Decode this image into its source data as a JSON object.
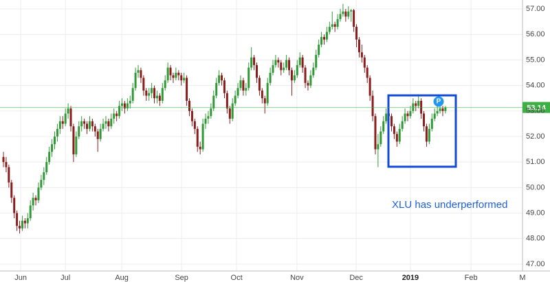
{
  "chart_data": {
    "type": "candlestick",
    "up_color": "#2f9a35",
    "down_color": "#8b1c1c",
    "xlim": [
      -1.28,
      192.6
    ],
    "xticks": [
      {
        "value": 6.4,
        "label": "Jun"
      },
      {
        "value": 23.0,
        "label": "Jul"
      },
      {
        "value": 43.9,
        "label": "Aug"
      },
      {
        "value": 66.1,
        "label": "Sep"
      },
      {
        "value": 86.5,
        "label": "Oct"
      },
      {
        "value": 108.9,
        "label": "Nov"
      },
      {
        "value": 130.9,
        "label": "Dec"
      },
      {
        "value": 151.0,
        "label": "2019"
      },
      {
        "value": 173.5,
        "label": "Feb"
      },
      {
        "value": 192.6,
        "label": "M"
      }
    ],
    "ylim": [
      46.73,
      57.35
    ],
    "yticks": [
      {
        "value": 47,
        "label": "47.00"
      },
      {
        "value": 48,
        "label": "48.00"
      },
      {
        "value": 49,
        "label": "49.00"
      },
      {
        "value": 50,
        "label": "50.00"
      },
      {
        "value": 51,
        "label": "51.00"
      },
      {
        "value": 52,
        "label": "52.00"
      },
      {
        "value": 53,
        "label": "53.00"
      },
      {
        "value": 54,
        "label": "54.00"
      },
      {
        "value": 55,
        "label": "55.00"
      },
      {
        "value": 56,
        "label": "56.00"
      },
      {
        "value": 57,
        "label": "57.00"
      }
    ],
    "grid": true,
    "last_price": 53.14,
    "last_price_color": "#3cb043",
    "marker_label": "P",
    "annotation": "XLU has underperformed",
    "candles": [
      [
        51.2,
        51.4,
        50.8,
        51.0
      ],
      [
        51.0,
        51.2,
        50.6,
        50.8
      ],
      [
        50.8,
        50.9,
        50.0,
        50.2
      ],
      [
        50.2,
        50.3,
        49.4,
        49.6
      ],
      [
        49.6,
        49.7,
        48.8,
        49.0
      ],
      [
        49.0,
        49.1,
        48.3,
        48.5
      ],
      [
        48.5,
        48.7,
        48.2,
        48.4
      ],
      [
        48.4,
        48.9,
        48.3,
        48.7
      ],
      [
        48.7,
        48.8,
        48.4,
        48.6
      ],
      [
        48.6,
        49.0,
        48.4,
        48.8
      ],
      [
        48.8,
        49.5,
        48.7,
        49.3
      ],
      [
        49.3,
        49.8,
        49.1,
        49.6
      ],
      [
        49.6,
        49.7,
        49.3,
        49.5
      ],
      [
        49.5,
        50.2,
        49.4,
        50.0
      ],
      [
        50.0,
        50.5,
        49.9,
        50.3
      ],
      [
        50.3,
        50.8,
        50.1,
        50.6
      ],
      [
        50.6,
        51.2,
        50.5,
        51.0
      ],
      [
        51.0,
        51.6,
        50.9,
        51.4
      ],
      [
        51.4,
        51.9,
        51.2,
        51.7
      ],
      [
        51.7,
        52.2,
        51.5,
        52.0
      ],
      [
        52.0,
        52.5,
        51.8,
        52.3
      ],
      [
        52.3,
        52.8,
        52.1,
        52.6
      ],
      [
        52.6,
        52.8,
        52.3,
        52.5
      ],
      [
        52.5,
        53.1,
        52.4,
        52.9
      ],
      [
        52.9,
        53.3,
        52.7,
        53.1
      ],
      [
        53.1,
        53.2,
        52.2,
        52.4
      ],
      [
        52.4,
        52.5,
        51.0,
        51.3
      ],
      [
        51.3,
        52.2,
        51.2,
        52.0
      ],
      [
        52.0,
        52.6,
        51.9,
        52.4
      ],
      [
        52.4,
        52.8,
        52.2,
        52.6
      ],
      [
        52.6,
        52.7,
        52.3,
        52.5
      ],
      [
        52.5,
        52.6,
        52.1,
        52.3
      ],
      [
        52.3,
        52.8,
        52.2,
        52.6
      ],
      [
        52.6,
        52.7,
        52.2,
        52.4
      ],
      [
        52.4,
        52.5,
        52.0,
        52.2
      ],
      [
        52.2,
        52.3,
        51.4,
        51.9
      ],
      [
        51.9,
        52.5,
        51.8,
        52.3
      ],
      [
        52.3,
        52.7,
        52.2,
        52.5
      ],
      [
        52.5,
        52.8,
        52.3,
        52.6
      ],
      [
        52.6,
        52.7,
        52.2,
        52.4
      ],
      [
        52.4,
        52.9,
        52.3,
        52.7
      ],
      [
        52.7,
        53.1,
        52.5,
        52.9
      ],
      [
        52.9,
        53.0,
        52.6,
        52.8
      ],
      [
        52.8,
        53.4,
        52.7,
        53.2
      ],
      [
        53.2,
        53.5,
        53.0,
        53.3
      ],
      [
        53.3,
        53.4,
        52.9,
        53.1
      ],
      [
        53.1,
        53.5,
        53.0,
        53.3
      ],
      [
        53.3,
        53.6,
        53.1,
        53.4
      ],
      [
        53.4,
        54.1,
        53.3,
        53.9
      ],
      [
        53.9,
        54.7,
        53.8,
        54.5
      ],
      [
        54.5,
        54.8,
        54.3,
        54.6
      ],
      [
        54.6,
        54.7,
        54.1,
        54.3
      ],
      [
        54.3,
        54.4,
        53.6,
        53.8
      ],
      [
        53.8,
        53.9,
        53.4,
        53.6
      ],
      [
        53.6,
        53.9,
        53.4,
        53.7
      ],
      [
        53.7,
        54.1,
        53.5,
        53.9
      ],
      [
        53.9,
        54.0,
        53.3,
        53.5
      ],
      [
        53.5,
        53.8,
        53.3,
        53.6
      ],
      [
        53.6,
        53.7,
        53.2,
        53.4
      ],
      [
        53.4,
        54.1,
        53.3,
        53.9
      ],
      [
        53.9,
        54.4,
        53.8,
        54.2
      ],
      [
        54.2,
        54.9,
        54.1,
        54.7
      ],
      [
        54.7,
        54.8,
        54.2,
        54.4
      ],
      [
        54.4,
        54.5,
        54.1,
        54.3
      ],
      [
        54.3,
        54.7,
        54.2,
        54.5
      ],
      [
        54.5,
        54.6,
        54.2,
        54.4
      ],
      [
        54.4,
        54.5,
        54.0,
        54.2
      ],
      [
        54.2,
        54.5,
        54.1,
        54.3
      ],
      [
        54.3,
        54.4,
        53.2,
        53.4
      ],
      [
        53.4,
        53.5,
        52.8,
        53.0
      ],
      [
        53.0,
        53.1,
        52.4,
        52.6
      ],
      [
        52.6,
        52.7,
        52.1,
        52.3
      ],
      [
        52.3,
        52.4,
        51.4,
        51.6
      ],
      [
        51.6,
        51.8,
        51.3,
        51.5
      ],
      [
        51.5,
        52.7,
        51.4,
        52.5
      ],
      [
        52.5,
        52.9,
        52.3,
        52.7
      ],
      [
        52.7,
        53.0,
        52.5,
        52.8
      ],
      [
        52.8,
        53.3,
        52.7,
        53.1
      ],
      [
        53.1,
        53.8,
        53.0,
        53.6
      ],
      [
        53.6,
        54.3,
        53.5,
        54.1
      ],
      [
        54.1,
        54.6,
        54.0,
        54.4
      ],
      [
        54.4,
        54.5,
        54.0,
        54.2
      ],
      [
        54.2,
        54.3,
        53.5,
        53.7
      ],
      [
        53.7,
        53.8,
        52.9,
        53.1
      ],
      [
        53.1,
        53.2,
        52.5,
        52.7
      ],
      [
        52.7,
        53.5,
        52.6,
        53.3
      ],
      [
        53.3,
        53.8,
        53.2,
        53.6
      ],
      [
        53.6,
        54.1,
        53.5,
        53.9
      ],
      [
        53.9,
        54.4,
        53.8,
        54.2
      ],
      [
        54.2,
        54.3,
        53.6,
        53.8
      ],
      [
        53.8,
        54.1,
        53.6,
        53.9
      ],
      [
        53.9,
        54.9,
        53.8,
        54.7
      ],
      [
        54.7,
        55.5,
        54.6,
        55.1
      ],
      [
        55.1,
        55.2,
        54.6,
        54.8
      ],
      [
        54.8,
        54.9,
        54.1,
        54.3
      ],
      [
        54.3,
        54.4,
        53.6,
        53.8
      ],
      [
        53.8,
        53.9,
        53.3,
        53.5
      ],
      [
        53.5,
        53.6,
        52.9,
        53.3
      ],
      [
        53.3,
        54.3,
        53.2,
        54.1
      ],
      [
        54.1,
        54.7,
        54.0,
        54.5
      ],
      [
        54.5,
        55.0,
        54.4,
        54.8
      ],
      [
        54.8,
        55.2,
        54.7,
        55.0
      ],
      [
        55.0,
        55.1,
        54.7,
        54.9
      ],
      [
        54.9,
        55.0,
        54.4,
        54.6
      ],
      [
        54.6,
        54.9,
        54.5,
        54.7
      ],
      [
        54.7,
        55.2,
        54.6,
        55.0
      ],
      [
        55.0,
        55.1,
        54.4,
        54.6
      ],
      [
        54.6,
        54.7,
        53.6,
        54.2
      ],
      [
        54.2,
        54.6,
        54.1,
        54.4
      ],
      [
        54.4,
        55.0,
        54.3,
        54.8
      ],
      [
        54.8,
        55.3,
        54.7,
        55.1
      ],
      [
        55.1,
        55.2,
        54.5,
        54.7
      ],
      [
        54.7,
        54.8,
        53.9,
        54.1
      ],
      [
        54.1,
        54.2,
        53.8,
        54.0
      ],
      [
        54.0,
        54.6,
        53.9,
        54.4
      ],
      [
        54.4,
        54.9,
        54.3,
        54.7
      ],
      [
        54.7,
        55.4,
        54.6,
        55.2
      ],
      [
        55.2,
        55.8,
        55.1,
        55.6
      ],
      [
        55.6,
        56.1,
        55.5,
        55.9
      ],
      [
        55.9,
        56.0,
        55.6,
        55.8
      ],
      [
        55.8,
        56.3,
        55.7,
        56.1
      ],
      [
        56.1,
        56.5,
        56.0,
        56.3
      ],
      [
        56.3,
        56.9,
        56.2,
        56.4
      ],
      [
        56.4,
        56.5,
        56.1,
        56.3
      ],
      [
        56.3,
        56.8,
        56.2,
        56.6
      ],
      [
        56.6,
        57.0,
        56.5,
        56.8
      ],
      [
        56.8,
        57.2,
        56.7,
        56.9
      ],
      [
        56.9,
        57.0,
        56.5,
        56.7
      ],
      [
        56.7,
        57.1,
        56.6,
        56.9
      ],
      [
        56.9,
        57.0,
        56.5,
        56.95
      ],
      [
        56.95,
        57.0,
        56.1,
        56.3
      ],
      [
        56.3,
        56.4,
        55.5,
        55.8
      ],
      [
        55.8,
        55.9,
        55.1,
        55.3
      ],
      [
        55.3,
        55.6,
        54.9,
        55.1
      ],
      [
        55.1,
        55.2,
        54.5,
        54.7
      ],
      [
        54.7,
        54.8,
        54.1,
        54.3
      ],
      [
        54.3,
        54.4,
        53.4,
        53.6
      ],
      [
        53.6,
        53.8,
        52.6,
        52.8
      ],
      [
        52.8,
        52.9,
        51.3,
        51.5
      ],
      [
        51.5,
        52.1,
        50.8,
        51.7
      ],
      [
        51.7,
        52.4,
        51.6,
        52.2
      ],
      [
        52.2,
        52.8,
        52.1,
        52.6
      ],
      [
        52.6,
        53.1,
        52.5,
        52.9
      ],
      [
        52.9,
        53.0,
        52.6,
        52.8
      ],
      [
        52.8,
        52.9,
        52.2,
        52.4
      ],
      [
        52.4,
        52.5,
        51.9,
        52.1
      ],
      [
        52.1,
        52.2,
        51.6,
        51.8
      ],
      [
        51.8,
        52.5,
        51.7,
        52.3
      ],
      [
        52.3,
        52.8,
        52.2,
        52.6
      ],
      [
        52.6,
        53.1,
        52.5,
        52.9
      ],
      [
        52.9,
        53.0,
        52.6,
        52.8
      ],
      [
        52.8,
        53.2,
        52.7,
        53.0
      ],
      [
        53.0,
        53.5,
        52.9,
        53.3
      ],
      [
        53.3,
        53.4,
        53.0,
        53.2
      ],
      [
        53.2,
        53.6,
        53.1,
        53.4
      ],
      [
        53.4,
        53.5,
        52.7,
        52.9
      ],
      [
        52.9,
        53.0,
        52.2,
        52.4
      ],
      [
        52.4,
        52.5,
        51.6,
        51.8
      ],
      [
        51.8,
        52.5,
        51.7,
        52.3
      ],
      [
        52.3,
        52.9,
        52.2,
        52.7
      ],
      [
        52.7,
        53.1,
        52.6,
        52.9
      ],
      [
        52.9,
        53.2,
        52.8,
        53.0
      ],
      [
        53.0,
        53.3,
        52.9,
        53.1
      ],
      [
        53.1,
        53.2,
        52.8,
        53.0
      ],
      [
        53.0,
        53.2,
        52.9,
        53.14
      ]
    ]
  }
}
